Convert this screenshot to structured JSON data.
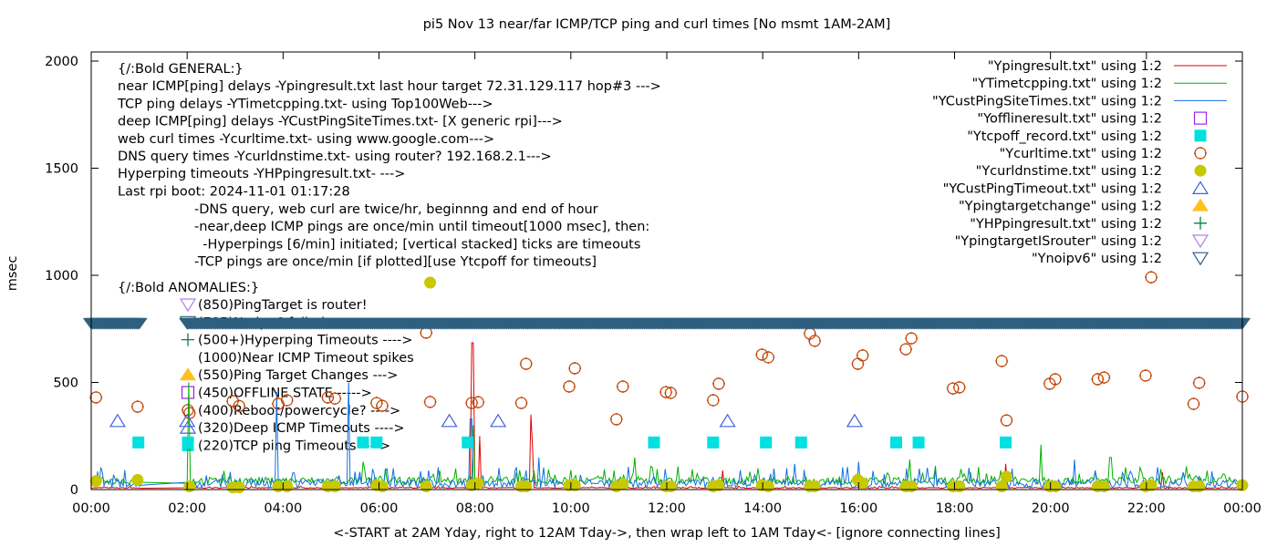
{
  "chart_data": {
    "type": "scatter",
    "title": "pi5 Nov 13  near/far ICMP/TCP ping and curl times [No msmt 1AM-2AM]",
    "xlabel": "<-START at 2AM Yday, right to 12AM Tday->, then wrap left to 1AM Tday<- [ignore connecting lines]",
    "ylabel": "msec",
    "xlim": [
      "00:00",
      "24:00"
    ],
    "ylim": [
      0,
      2080
    ],
    "x_ticks": [
      "00:00",
      "02:00",
      "04:00",
      "06:00",
      "08:00",
      "10:00",
      "12:00",
      "14:00",
      "16:00",
      "18:00",
      "20:00",
      "22:00",
      "00:00"
    ],
    "y_ticks": [
      "0",
      "500",
      "1000",
      "1500",
      "2000"
    ],
    "grid": false,
    "legend_position": "top-right",
    "colors": {
      "ping": "#e00000",
      "tcpping": "#00b000",
      "custping": "#1070e0",
      "offline": "#a020f0",
      "tcpoff": "#00e0e0",
      "curl": "#c04000",
      "dns": "#c8c800",
      "custtimeout": "#4060e0",
      "targetchange": "#ffc020",
      "hyperping": "#008040",
      "isrouter": "#b080f0",
      "noipv6": "#2e5f7f"
    },
    "series": [
      {
        "name": "\"Ypingresult.txt\" using 1:2",
        "style": "line",
        "color_key": "ping",
        "baseline": 6,
        "spikes": [
          [
            "07:57",
            685
          ],
          [
            "08:05",
            250
          ],
          [
            "09:10",
            350
          ],
          [
            "09:12",
            200
          ],
          [
            "19:05",
            120
          ],
          [
            "13:10",
            90
          ],
          [
            "22:20",
            80
          ]
        ]
      },
      {
        "name": "\"YTimetcpping.txt\" using 1:2",
        "style": "line",
        "color_key": "tcpping",
        "baseline": 34,
        "spikes": [
          [
            "02:03",
            500
          ],
          [
            "07:58",
            300
          ],
          [
            "19:48",
            210
          ],
          [
            "17:05",
            140
          ],
          [
            "11:20",
            150
          ],
          [
            "05:40",
            130
          ],
          [
            "21:15",
            150
          ]
        ]
      },
      {
        "name": "\"YCustPingSiteTimes.txt\" using 1:2",
        "style": "line",
        "color_key": "custping",
        "baseline": 20,
        "spikes": [
          [
            "03:52",
            455
          ],
          [
            "05:22",
            500
          ],
          [
            "07:55",
            330
          ],
          [
            "09:20",
            150
          ],
          [
            "14:40",
            120
          ],
          [
            "16:00",
            130
          ],
          [
            "20:30",
            140
          ]
        ]
      },
      {
        "name": "\"Yofflineresult.txt\" using 1:2",
        "style": "open-square",
        "color_key": "offline",
        "points": []
      },
      {
        "name": "\"Ytcpoff_record.txt\" using 1:2",
        "style": "filled-square",
        "color_key": "tcpoff",
        "points": [
          [
            "00:59",
            220
          ],
          [
            "02:01",
            220
          ],
          [
            "05:40",
            220
          ],
          [
            "05:57",
            220
          ],
          [
            "07:51",
            220
          ],
          [
            "11:44",
            220
          ],
          [
            "12:58",
            220
          ],
          [
            "14:04",
            220
          ],
          [
            "14:48",
            220
          ],
          [
            "16:47",
            220
          ],
          [
            "17:15",
            220
          ],
          [
            "19:04",
            220
          ]
        ]
      },
      {
        "name": "\"Ycurltime.txt\" using 1:2",
        "style": "open-circle",
        "color_key": "curl",
        "points": [
          [
            "00:06",
            430
          ],
          [
            "00:58",
            387
          ],
          [
            "02:03",
            357
          ],
          [
            "02:57",
            413
          ],
          [
            "03:05",
            390
          ],
          [
            "03:54",
            400
          ],
          [
            "04:05",
            417
          ],
          [
            "04:56",
            430
          ],
          [
            "05:05",
            425
          ],
          [
            "05:57",
            404
          ],
          [
            "06:04",
            391
          ],
          [
            "06:59",
            732
          ],
          [
            "07:04",
            409
          ],
          [
            "07:56",
            404
          ],
          [
            "08:04",
            408
          ],
          [
            "08:58",
            404
          ],
          [
            "09:04",
            587
          ],
          [
            "09:58",
            481
          ],
          [
            "10:05",
            566
          ],
          [
            "10:57",
            328
          ],
          [
            "11:05",
            481
          ],
          [
            "11:59",
            455
          ],
          [
            "12:05",
            451
          ],
          [
            "12:58",
            417
          ],
          [
            "13:05",
            494
          ],
          [
            "13:59",
            630
          ],
          [
            "14:07",
            617
          ],
          [
            "14:59",
            728
          ],
          [
            "15:05",
            694
          ],
          [
            "15:59",
            587
          ],
          [
            "16:05",
            626
          ],
          [
            "16:59",
            655
          ],
          [
            "17:06",
            706
          ],
          [
            "17:58",
            472
          ],
          [
            "18:06",
            477
          ],
          [
            "18:59",
            600
          ],
          [
            "19:05",
            323
          ],
          [
            "19:59",
            494
          ],
          [
            "20:06",
            515
          ],
          [
            "20:59",
            515
          ],
          [
            "21:07",
            523
          ],
          [
            "21:59",
            532
          ],
          [
            "22:06",
            991
          ],
          [
            "22:59",
            400
          ],
          [
            "23:06",
            498
          ],
          [
            "24:00",
            434
          ]
        ]
      },
      {
        "name": "\"Ycurldnstime.txt\" using 1:2",
        "style": "filled-circle",
        "color_key": "dns",
        "points": [
          [
            "00:06",
            40
          ],
          [
            "00:58",
            45
          ],
          [
            "02:03",
            15
          ],
          [
            "02:57",
            10
          ],
          [
            "03:05",
            10
          ],
          [
            "03:54",
            15
          ],
          [
            "04:05",
            15
          ],
          [
            "04:56",
            15
          ],
          [
            "05:05",
            15
          ],
          [
            "05:57",
            20
          ],
          [
            "06:04",
            15
          ],
          [
            "06:59",
            15
          ],
          [
            "07:04",
            966
          ],
          [
            "07:56",
            20
          ],
          [
            "08:04",
            30
          ],
          [
            "08:58",
            15
          ],
          [
            "09:04",
            15
          ],
          [
            "09:58",
            20
          ],
          [
            "10:05",
            20
          ],
          [
            "10:57",
            15
          ],
          [
            "11:05",
            25
          ],
          [
            "11:59",
            15
          ],
          [
            "12:05",
            15
          ],
          [
            "12:58",
            15
          ],
          [
            "13:05",
            20
          ],
          [
            "13:59",
            20
          ],
          [
            "14:07",
            15
          ],
          [
            "14:59",
            15
          ],
          [
            "15:05",
            15
          ],
          [
            "15:59",
            45
          ],
          [
            "16:05",
            30
          ],
          [
            "16:59",
            15
          ],
          [
            "17:06",
            15
          ],
          [
            "17:58",
            15
          ],
          [
            "18:06",
            15
          ],
          [
            "18:59",
            15
          ],
          [
            "19:05",
            60
          ],
          [
            "19:59",
            15
          ],
          [
            "20:06",
            15
          ],
          [
            "20:59",
            15
          ],
          [
            "21:07",
            15
          ],
          [
            "21:59",
            15
          ],
          [
            "22:06",
            20
          ],
          [
            "22:59",
            15
          ],
          [
            "23:06",
            15
          ],
          [
            "24:00",
            20
          ]
        ]
      },
      {
        "name": "\"YCustPingTimeout.txt\" using 1:2",
        "style": "open-triangle",
        "color_key": "custtimeout",
        "points": [
          [
            "00:33",
            320
          ],
          [
            "02:00",
            320
          ],
          [
            "07:28",
            320
          ],
          [
            "08:29",
            320
          ],
          [
            "13:16",
            320
          ],
          [
            "15:55",
            320
          ]
        ]
      },
      {
        "name": "\"Ypingtargetchange\" using 1:2",
        "style": "filled-triangle",
        "color_key": "targetchange",
        "points": []
      },
      {
        "name": "\"YHPpingresult.txt\" using 1:2",
        "style": "plus",
        "color_key": "hyperping",
        "points": []
      },
      {
        "name": "\"YpingtargetISrouter\" using 1:2",
        "style": "open-down-triangle",
        "color_key": "isrouter",
        "points": []
      },
      {
        "name": "\"Ynoipv6\" using 1:2",
        "style": "open-down-triangle",
        "color_key": "noipv6",
        "value": 785,
        "ranges": [
          [
            "00:00",
            "01:00"
          ],
          [
            "02:00",
            "24:00"
          ]
        ]
      }
    ],
    "annotations": {
      "general": [
        "{/:Bold GENERAL:}",
        "near ICMP[ping] delays -Ypingresult.txt last hour target 72.31.129.117 hop#3 --->",
        "TCP ping delays -YTimetcpping.txt- using Top100Web--->",
        "deep ICMP[ping] delays -YCustPingSiteTimes.txt- [X generic rpi]--->",
        "web curl times -Ycurltime.txt- using www.google.com--->",
        "DNS query times -Ycurldnstime.txt- using router? 192.168.2.1--->",
        "Hyperping timeouts -YHPpingresult.txt- --->",
        "Last rpi boot: 2024-11-01 01:17:28"
      ],
      "notes": [
        "-DNS query, web curl are twice/hr, beginnng and end of hour",
        "-near,deep ICMP pings are once/min until timeout[1000 msec], then:",
        "  -Hyperpings [6/min] initiated; [vertical stacked] ticks are timeouts",
        "-TCP pings are once/min [if plotted][use Ytcpoff for timeouts]"
      ],
      "anomalies_title": "{/:Bold ANOMALIES:}",
      "anomalies": [
        {
          "text": "(850)PingTarget is router!",
          "marker": "isrouter"
        },
        {
          "text": "(785)No ipv6 failed",
          "marker": "noipv6"
        },
        {
          "text": "(500+)Hyperping Timeouts ---->",
          "marker": "hyperping"
        },
        {
          "text": "(1000)Near ICMP Timeout spikes",
          "marker": ""
        },
        {
          "text": "(550)Ping Target Changes --->",
          "marker": "targetchange"
        },
        {
          "text": "(450)OFFLINE STATE ----->",
          "marker": "offline"
        },
        {
          "text": "(400)Reboot/powercycle? ---->",
          "marker": "curl"
        },
        {
          "text": "(320)Deep ICMP Timeouts ---->",
          "marker": "custtimeout"
        },
        {
          "text": "(220)TCP ping Timeouts ---->",
          "marker": "tcpoff"
        }
      ]
    }
  }
}
